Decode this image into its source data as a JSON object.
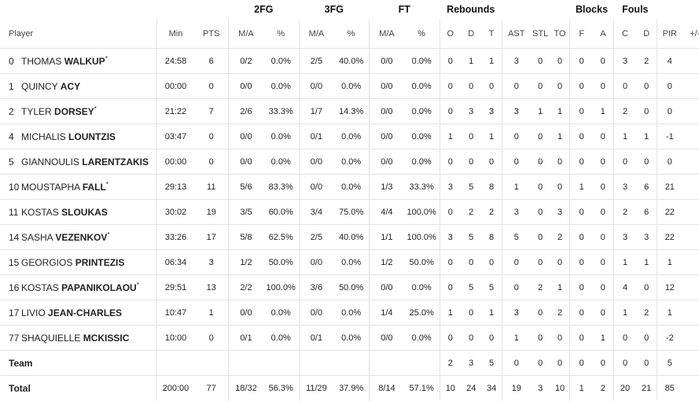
{
  "headers": {
    "groups": {
      "fg2": "2FG",
      "fg3": "3FG",
      "ft": "FT",
      "rebounds": "Rebounds",
      "blocks": "Blocks",
      "fouls": "Fouls"
    },
    "columns": [
      "Player",
      "Min",
      "PTS",
      "M/A",
      "%",
      "M/A",
      "%",
      "M/A",
      "%",
      "O",
      "D",
      "T",
      "AST",
      "STL",
      "TO",
      "F",
      "A",
      "C",
      "D",
      "PIR",
      "+/-"
    ]
  },
  "players": [
    {
      "num": "0",
      "first": "THOMAS",
      "last": "WALKUP",
      "star": "*",
      "stats": [
        "24:58",
        "6",
        "0/2",
        "0.0%",
        "2/5",
        "40.0%",
        "0/0",
        "0.0%",
        "0",
        "1",
        "1",
        "3",
        "0",
        "0",
        "0",
        "0",
        "3",
        "2",
        "4",
        ""
      ]
    },
    {
      "num": "1",
      "first": "QUINCY",
      "last": "ACY",
      "star": "",
      "stats": [
        "00:00",
        "0",
        "0/0",
        "0.0%",
        "0/0",
        "0.0%",
        "0/0",
        "0.0%",
        "0",
        "0",
        "0",
        "0",
        "0",
        "0",
        "0",
        "0",
        "0",
        "0",
        "0",
        ""
      ]
    },
    {
      "num": "2",
      "first": "TYLER",
      "last": "DORSEY",
      "star": "*",
      "stats": [
        "21:22",
        "7",
        "2/6",
        "33.3%",
        "1/7",
        "14.3%",
        "0/0",
        "0.0%",
        "0",
        "3",
        "3",
        "3",
        "1",
        "1",
        "0",
        "1",
        "2",
        "0",
        "0",
        ""
      ]
    },
    {
      "num": "4",
      "first": "MICHALIS",
      "last": "LOUNTZIS",
      "star": "",
      "stats": [
        "03:47",
        "0",
        "0/0",
        "0.0%",
        "0/1",
        "0.0%",
        "0/0",
        "0.0%",
        "1",
        "0",
        "1",
        "0",
        "0",
        "1",
        "0",
        "0",
        "1",
        "1",
        "-1",
        ""
      ]
    },
    {
      "num": "5",
      "first": "GIANNOULIS",
      "last": "LARENTZAKIS",
      "star": "",
      "stats": [
        "00:00",
        "0",
        "0/0",
        "0.0%",
        "0/0",
        "0.0%",
        "0/0",
        "0.0%",
        "0",
        "0",
        "0",
        "0",
        "0",
        "0",
        "0",
        "0",
        "0",
        "0",
        "0",
        ""
      ]
    },
    {
      "num": "10",
      "first": "MOUSTAPHA",
      "last": "FALL",
      "star": "*",
      "stats": [
        "29:13",
        "11",
        "5/6",
        "83.3%",
        "0/0",
        "0.0%",
        "1/3",
        "33.3%",
        "3",
        "5",
        "8",
        "1",
        "0",
        "0",
        "1",
        "0",
        "3",
        "6",
        "21",
        ""
      ]
    },
    {
      "num": "11",
      "first": "KOSTAS",
      "last": "SLOUKAS",
      "star": "",
      "stats": [
        "30:02",
        "19",
        "3/5",
        "60.0%",
        "3/4",
        "75.0%",
        "4/4",
        "100.0%",
        "0",
        "2",
        "2",
        "3",
        "0",
        "3",
        "0",
        "0",
        "2",
        "6",
        "22",
        ""
      ]
    },
    {
      "num": "14",
      "first": "SASHA",
      "last": "VEZENKOV",
      "star": "*",
      "stats": [
        "33:26",
        "17",
        "5/8",
        "62.5%",
        "2/5",
        "40.0%",
        "1/1",
        "100.0%",
        "3",
        "5",
        "8",
        "5",
        "0",
        "2",
        "0",
        "0",
        "3",
        "3",
        "22",
        ""
      ]
    },
    {
      "num": "15",
      "first": "GEORGIOS",
      "last": "PRINTEZIS",
      "star": "",
      "stats": [
        "06:34",
        "3",
        "1/2",
        "50.0%",
        "0/0",
        "0.0%",
        "1/2",
        "50.0%",
        "0",
        "0",
        "0",
        "0",
        "0",
        "0",
        "0",
        "0",
        "1",
        "1",
        "1",
        ""
      ]
    },
    {
      "num": "16",
      "first": "KOSTAS",
      "last": "PAPANIKOLAOU",
      "star": "*",
      "stats": [
        "29:51",
        "13",
        "2/2",
        "100.0%",
        "3/6",
        "50.0%",
        "0/0",
        "0.0%",
        "0",
        "5",
        "5",
        "0",
        "2",
        "1",
        "0",
        "0",
        "4",
        "0",
        "12",
        ""
      ]
    },
    {
      "num": "17",
      "first": "LIVIO",
      "last": "JEAN-CHARLES",
      "star": "",
      "stats": [
        "10:47",
        "1",
        "0/0",
        "0.0%",
        "0/0",
        "0.0%",
        "1/4",
        "25.0%",
        "1",
        "0",
        "1",
        "3",
        "0",
        "2",
        "0",
        "0",
        "1",
        "2",
        "1",
        ""
      ]
    },
    {
      "num": "77",
      "first": "SHAQUIELLE",
      "last": "MCKISSIC",
      "star": "",
      "stats": [
        "10:00",
        "0",
        "0/1",
        "0.0%",
        "0/1",
        "0.0%",
        "0/0",
        "0.0%",
        "0",
        "0",
        "0",
        "1",
        "0",
        "0",
        "0",
        "1",
        "0",
        "0",
        "-2",
        ""
      ]
    }
  ],
  "team": {
    "label": "Team",
    "stats": [
      "",
      "",
      "",
      "",
      "",
      "",
      "",
      "",
      "2",
      "3",
      "5",
      "0",
      "0",
      "0",
      "0",
      "0",
      "0",
      "0",
      "5",
      ""
    ]
  },
  "total": {
    "label": "Total",
    "stats": [
      "200:00",
      "77",
      "18/32",
      "56.3%",
      "11/29",
      "37.9%",
      "8/14",
      "57.1%",
      "10",
      "24",
      "34",
      "19",
      "3",
      "10",
      "1",
      "2",
      "20",
      "21",
      "85",
      ""
    ]
  }
}
